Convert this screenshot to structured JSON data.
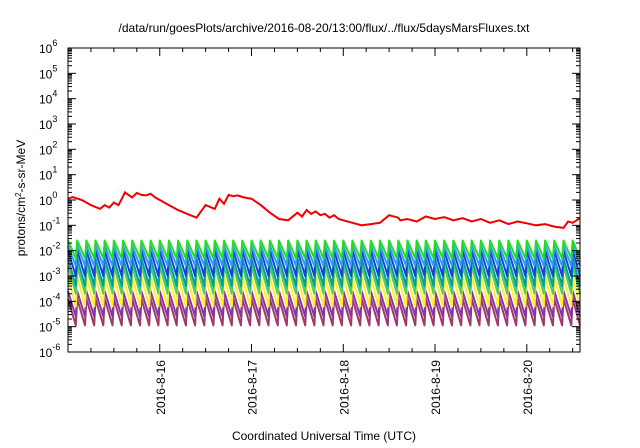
{
  "chart_data": {
    "type": "line",
    "title": "/data/run/goesPlots/archive/2016-08-20/13:00/flux/../flux/5daysMarsFluxes.txt",
    "xlabel": "Coordinated Universal Time (UTC)",
    "ylabel": {
      "pre": "protons/cm",
      "sup": "2",
      "post": "-s-sr-MeV"
    },
    "yscale": "log",
    "ylim_exp": [
      -6,
      6
    ],
    "y_ticks": [
      {
        "base": "10",
        "exp": "-6"
      },
      {
        "base": "10",
        "exp": "-5"
      },
      {
        "base": "10",
        "exp": "-4"
      },
      {
        "base": "10",
        "exp": "-3"
      },
      {
        "base": "10",
        "exp": "-2"
      },
      {
        "base": "10",
        "exp": "-1"
      },
      {
        "base": "10",
        "exp": "0"
      },
      {
        "base": "10",
        "exp": "1"
      },
      {
        "base": "10",
        "exp": "2"
      },
      {
        "base": "10",
        "exp": "3"
      },
      {
        "base": "10",
        "exp": "4"
      },
      {
        "base": "10",
        "exp": "5"
      },
      {
        "base": "10",
        "exp": "6"
      }
    ],
    "xlim_days": [
      15.0,
      20.58
    ],
    "x_ticks": [
      {
        "day": 16,
        "label": "2016-8-16"
      },
      {
        "day": 17,
        "label": "2016-8-17"
      },
      {
        "day": 18,
        "label": "2016-8-18"
      },
      {
        "day": 19,
        "label": "2016-8-19"
      },
      {
        "day": 20,
        "label": "2016-8-20"
      }
    ],
    "grid": false,
    "legend": "none",
    "red_series": {
      "color": "#ee0000",
      "x": [
        15.0,
        15.05,
        15.15,
        15.25,
        15.35,
        15.4,
        15.45,
        15.5,
        15.55,
        15.6,
        15.62,
        15.7,
        15.75,
        15.8,
        15.85,
        15.9,
        15.95,
        16.0,
        16.1,
        16.2,
        16.3,
        16.4,
        16.5,
        16.6,
        16.65,
        16.7,
        16.75,
        16.8,
        16.85,
        16.9,
        16.95,
        17.0,
        17.1,
        17.2,
        17.3,
        17.4,
        17.5,
        17.55,
        17.6,
        17.65,
        17.7,
        17.75,
        17.8,
        17.85,
        17.9,
        17.95,
        18.0,
        18.1,
        18.2,
        18.3,
        18.4,
        18.5,
        18.6,
        18.62,
        18.7,
        18.8,
        18.9,
        19.0,
        19.1,
        19.2,
        19.3,
        19.4,
        19.5,
        19.6,
        19.7,
        19.8,
        19.9,
        20.0,
        20.1,
        20.2,
        20.3,
        20.4,
        20.45,
        20.5,
        20.58
      ],
      "logy": [
        0.05,
        0.12,
        0.0,
        -0.2,
        -0.35,
        -0.2,
        -0.3,
        -0.1,
        -0.2,
        0.15,
        0.3,
        0.1,
        0.28,
        0.2,
        0.18,
        0.25,
        0.1,
        0.0,
        -0.2,
        -0.4,
        -0.55,
        -0.7,
        -0.2,
        -0.35,
        0.05,
        -0.15,
        0.2,
        0.15,
        0.18,
        0.12,
        0.08,
        0.05,
        -0.2,
        -0.5,
        -0.75,
        -0.8,
        -0.5,
        -0.65,
        -0.4,
        -0.55,
        -0.45,
        -0.6,
        -0.55,
        -0.7,
        -0.6,
        -0.75,
        -0.8,
        -0.9,
        -1.0,
        -0.95,
        -0.9,
        -0.6,
        -0.7,
        -0.8,
        -0.75,
        -0.85,
        -0.65,
        -0.75,
        -0.68,
        -0.8,
        -0.72,
        -0.85,
        -0.75,
        -0.9,
        -0.8,
        -0.95,
        -0.85,
        -0.92,
        -1.0,
        -0.95,
        -1.05,
        -1.1,
        -0.85,
        -0.9,
        -0.72
      ]
    },
    "sawtooth_series": [
      {
        "color": "#22dd22",
        "top": -1.6,
        "bottom": -2.3
      },
      {
        "color": "#3399ff",
        "top": -1.8,
        "bottom": -2.6
      },
      {
        "color": "#1144dd",
        "top": -2.0,
        "bottom": -3.0
      },
      {
        "color": "#00a0a0",
        "top": -2.3,
        "bottom": -3.4
      },
      {
        "color": "#55cc55",
        "top": -2.6,
        "bottom": -3.7
      },
      {
        "color": "#ffee33",
        "top": -3.0,
        "bottom": -4.2
      },
      {
        "color": "#8833aa",
        "top": -3.6,
        "bottom": -4.6
      },
      {
        "color": "#9c3a6a",
        "top": -3.9,
        "bottom": -4.95
      }
    ],
    "sawtooth_period_days": 0.1
  }
}
